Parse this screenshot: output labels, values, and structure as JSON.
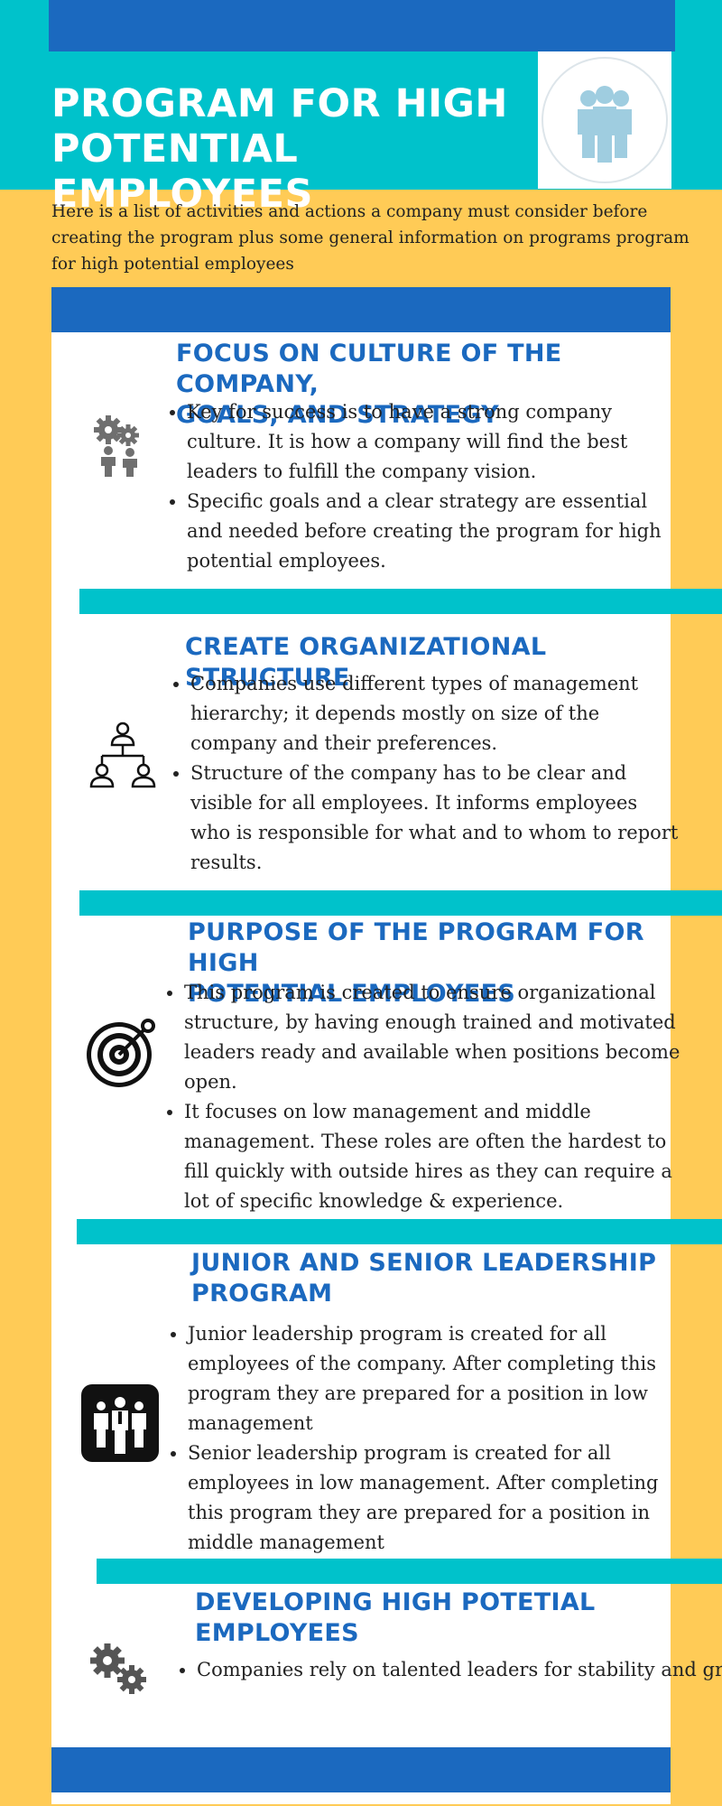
{
  "header": {
    "title_line1": "PROGRAM FOR HIGH",
    "title_line2": "POTENTIAL EMPLOYEES",
    "logo_icon": "people-group-icon"
  },
  "intro": "Here is a list of activities and actions a company must consider before creating the program plus some general information on programs program for high potential employees",
  "sections": [
    {
      "title_line1": "FOCUS ON CULTURE OF THE COMPANY,",
      "title_line2": "GOALS, AND STRATEGY",
      "icon": "gears-teamwork-icon",
      "bullets": [
        "Key for success is to have a strong company culture. It is how a company will find the best leaders to fulfill the company vision.",
        "Specific goals and a clear strategy are essential and needed before creating the program for high potential employees."
      ]
    },
    {
      "title_line1": "CREATE ORGANIZATIONAL STRUCTURE",
      "icon": "org-chart-icon",
      "bullets": [
        "Companies use different types of management hierarchy; it depends mostly on size of the company and their preferences.",
        "Structure of the company has to be clear and visible for all employees. It informs employees who is responsible for what and to whom to report results."
      ]
    },
    {
      "title_line1": "PURPOSE OF THE PROGRAM FOR HIGH",
      "title_line2": "POTENTIAL EMPLOYEES",
      "icon": "target-icon",
      "bullets": [
        "This program is created to ensure organizational structure, by having enough trained and motivated leaders ready and available when positions become open.",
        "It focuses on low management and middle management. These roles are often the hardest to fill quickly with outside hires as they can require a lot of specific knowledge & experience."
      ]
    },
    {
      "title_line1": "JUNIOR AND SENIOR LEADERSHIP",
      "title_line2": "PROGRAM",
      "icon": "leader-team-icon",
      "bullets": [
        "Junior leadership program is created for all employees of the company. After completing this program they are prepared for a position in low management",
        "Senior leadership program is created for all employees in low management. After completing this program they are prepared for a position in middle management"
      ]
    },
    {
      "title_line1": "DEVELOPING HIGH POTETIAL",
      "title_line2": "EMPLOYEES",
      "icon": "gears-icon",
      "bullets": [
        "Companies rely on talented leaders for stability and gro"
      ]
    }
  ],
  "colors": {
    "background": "#ffcb56",
    "teal": "#00c2cb",
    "blue": "#1b69bf",
    "white": "#ffffff",
    "text": "#222222"
  }
}
